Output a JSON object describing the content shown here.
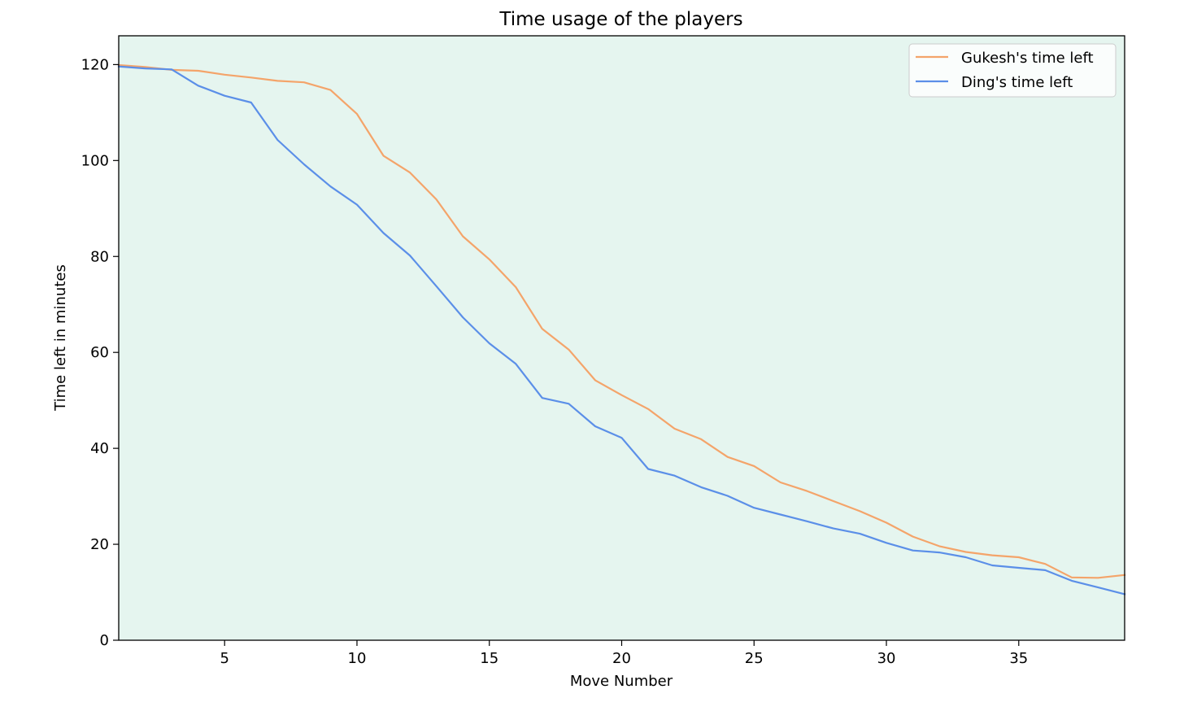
{
  "chart_data": {
    "type": "line",
    "title": "Time usage of the players",
    "xlabel": "Move Number",
    "ylabel": "Time left in minutes",
    "xlim": [
      1,
      39
    ],
    "ylim": [
      0,
      126
    ],
    "x_ticks": [
      5,
      10,
      15,
      20,
      25,
      30,
      35
    ],
    "y_ticks": [
      0,
      20,
      40,
      60,
      80,
      100,
      120
    ],
    "background_color": "#e5f5ef",
    "grid": false,
    "legend_position": "top-right",
    "x": [
      1,
      2,
      3,
      4,
      5,
      6,
      7,
      8,
      9,
      10,
      11,
      12,
      13,
      14,
      15,
      16,
      17,
      18,
      19,
      20,
      21,
      22,
      23,
      24,
      25,
      26,
      27,
      28,
      29,
      30,
      31,
      32,
      33,
      34,
      35,
      36,
      37,
      38,
      39
    ],
    "series": [
      {
        "name": "Gukesh's time left",
        "color": "#f4a46a",
        "values": [
          119.9,
          119.5,
          118.9,
          118.7,
          117.9,
          117.3,
          116.6,
          116.3,
          114.7,
          109.7,
          101.0,
          97.5,
          91.9,
          84.2,
          79.4,
          73.6,
          64.9,
          60.6,
          54.2,
          51.1,
          48.2,
          44.1,
          41.9,
          38.2,
          36.3,
          32.9,
          31.1,
          29.0,
          26.9,
          24.5,
          21.6,
          19.6,
          18.4,
          17.7,
          17.3,
          15.9,
          13.1,
          13.0,
          13.6
        ]
      },
      {
        "name": "Ding's time left",
        "color": "#5b8fe8",
        "values": [
          119.6,
          119.2,
          119.0,
          115.6,
          113.5,
          112.1,
          104.3,
          99.2,
          94.6,
          90.8,
          84.9,
          80.2,
          73.8,
          67.3,
          61.9,
          57.6,
          50.5,
          49.3,
          44.6,
          42.2,
          35.7,
          34.3,
          31.9,
          30.1,
          27.6,
          26.2,
          24.8,
          23.3,
          22.2,
          20.3,
          18.7,
          18.3,
          17.3,
          15.6,
          15.1,
          14.6,
          12.4,
          11.0,
          9.6
        ]
      }
    ]
  }
}
